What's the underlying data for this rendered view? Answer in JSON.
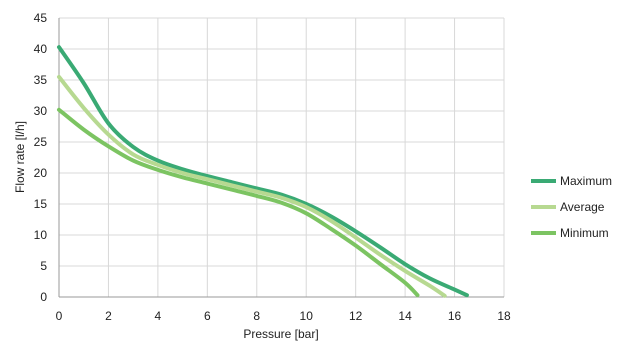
{
  "chart_data": {
    "type": "line",
    "title": "",
    "xlabel": "Pressure  [bar]",
    "ylabel": "Flow rate [l/h]",
    "xlim": [
      0,
      18
    ],
    "ylim": [
      0,
      45
    ],
    "xticks": [
      0,
      2,
      4,
      6,
      8,
      10,
      12,
      14,
      16,
      18
    ],
    "yticks": [
      0,
      5,
      10,
      15,
      20,
      25,
      30,
      35,
      40,
      45
    ],
    "grid": true,
    "legend_position": "right",
    "series": [
      {
        "name": "Maximum",
        "color": "#3aaa74",
        "x": [
          0,
          1,
          2,
          3,
          4,
          5,
          6,
          7,
          8,
          9,
          10,
          11,
          12,
          13,
          14,
          15,
          16,
          16.5
        ],
        "y": [
          40.3,
          34.5,
          28.0,
          24.2,
          22.0,
          20.6,
          19.5,
          18.5,
          17.5,
          16.5,
          15.0,
          13.0,
          10.6,
          8.0,
          5.3,
          3.0,
          1.2,
          0.3
        ]
      },
      {
        "name": "Average",
        "color": "#b7d991",
        "x": [
          0,
          1,
          2,
          3,
          4,
          5,
          6,
          7,
          8,
          9,
          10,
          11,
          12,
          13,
          14,
          15,
          15.6
        ],
        "y": [
          35.5,
          30.5,
          26.2,
          23.0,
          21.3,
          20.0,
          19.0,
          18.0,
          17.0,
          16.0,
          14.5,
          12.3,
          9.6,
          6.8,
          4.2,
          1.8,
          0.2
        ]
      },
      {
        "name": "Minimum",
        "color": "#7cc462",
        "x": [
          0,
          1,
          2,
          3,
          4,
          5,
          6,
          7,
          8,
          9,
          10,
          11,
          12,
          13,
          14,
          14.5
        ],
        "y": [
          30.2,
          27.0,
          24.3,
          22.0,
          20.5,
          19.3,
          18.3,
          17.3,
          16.3,
          15.2,
          13.5,
          11.0,
          8.3,
          5.3,
          2.3,
          0.3
        ]
      }
    ]
  }
}
